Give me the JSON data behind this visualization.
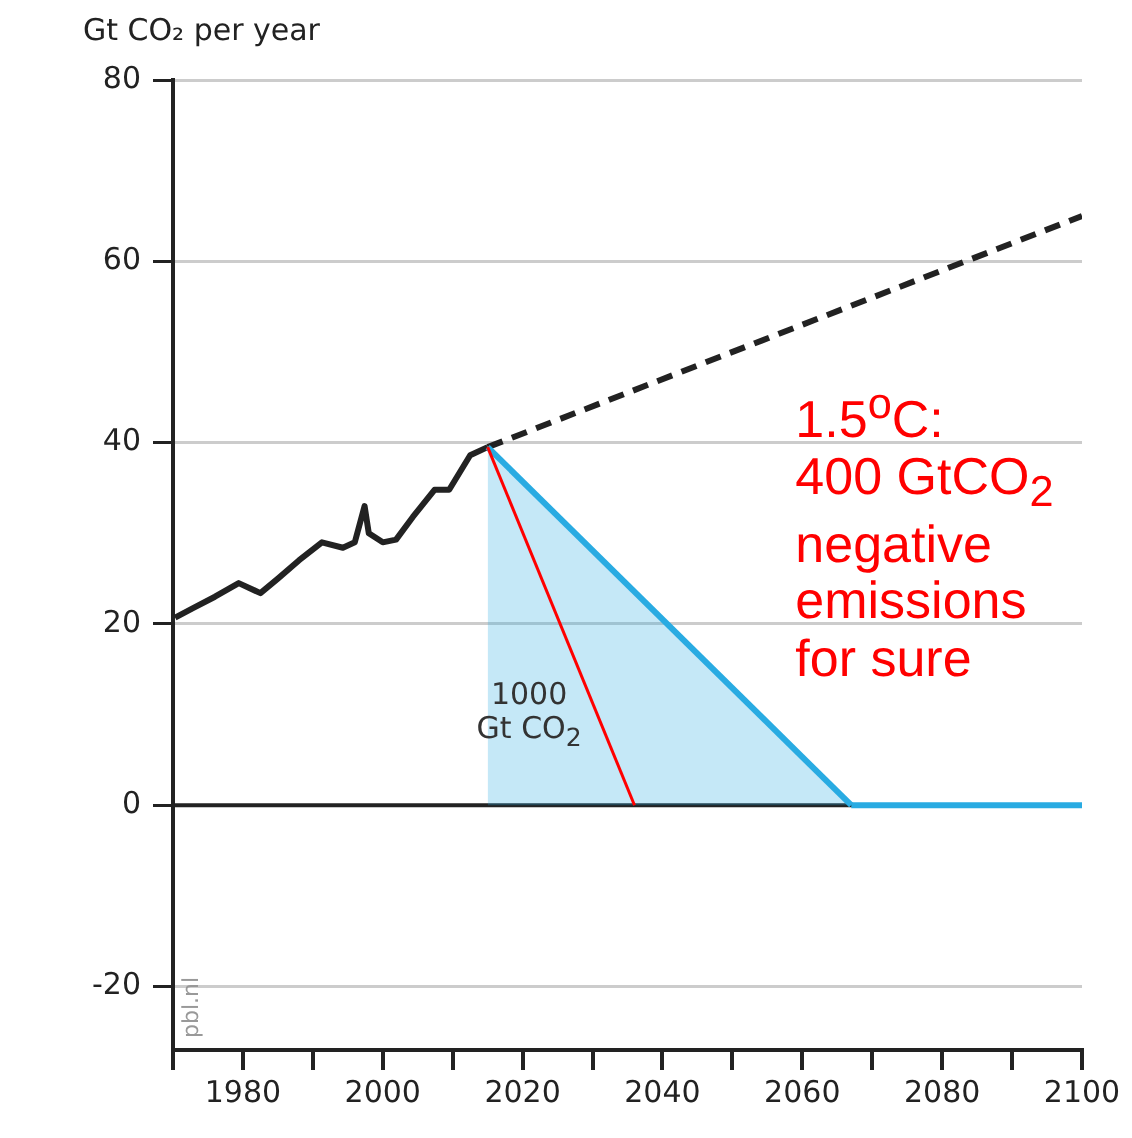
{
  "chart_data": {
    "type": "line",
    "ylabel": "Gt CO₂ per year",
    "xlim": [
      1970,
      2100
    ],
    "ylim": [
      -27,
      80
    ],
    "xticks": [
      {
        "value": 1970,
        "label": null
      },
      1980,
      {
        "value": 1990,
        "label": null
      },
      2000,
      {
        "value": 2010,
        "label": null
      },
      2020,
      {
        "value": 2030,
        "label": null
      },
      2040,
      {
        "value": 2050,
        "label": null
      },
      2060,
      {
        "value": 2070,
        "label": null
      },
      2080,
      {
        "value": 2090,
        "label": null
      },
      2100
    ],
    "yticks": [
      -20,
      0,
      20,
      40,
      60,
      80
    ],
    "grid": "y",
    "legend": false,
    "marker": "none",
    "ref_lines": [
      {
        "axis": "y",
        "value": 0,
        "color": "#222222"
      }
    ],
    "series": [
      {
        "type": "line",
        "color": "#222222",
        "x": [
          1970.3,
          1973,
          1976,
          1979.4,
          1982.5,
          1985,
          1988,
          1991.3,
          1994.3,
          1996,
          1997.4,
          1998,
          2000,
          2001.9,
          2004.3,
          2007.4,
          2009.5,
          2012.5,
          2015
        ],
        "values": [
          20.7,
          21.8,
          23,
          24.5,
          23.4,
          25,
          27,
          29,
          28.4,
          29,
          33,
          30,
          29,
          29.3,
          31.8,
          34.8,
          34.8,
          38.6,
          39.5
        ]
      },
      {
        "type": "line",
        "color": "#222222",
        "line_style": "dashed",
        "x": [
          2015,
          2100
        ],
        "values": [
          39.5,
          65
        ]
      },
      {
        "type": "area",
        "color": "#29abe2",
        "x": [
          2015,
          2067
        ],
        "values": [
          39.5,
          0
        ]
      },
      {
        "type": "line",
        "color": "#29abe2",
        "x": [
          2067,
          2100
        ],
        "values": [
          0,
          0
        ]
      },
      {
        "type": "line",
        "color": "#ff0000",
        "x": [
          2015,
          2036
        ],
        "values": [
          39.5,
          0
        ]
      }
    ],
    "annotations": [
      "1000\nGt CO$_{2}$",
      "1.5$^{o}$C:\n400 GtCO$_{2}$\nnegative\nemissions\nfor sure",
      "pbl.nl"
    ]
  }
}
